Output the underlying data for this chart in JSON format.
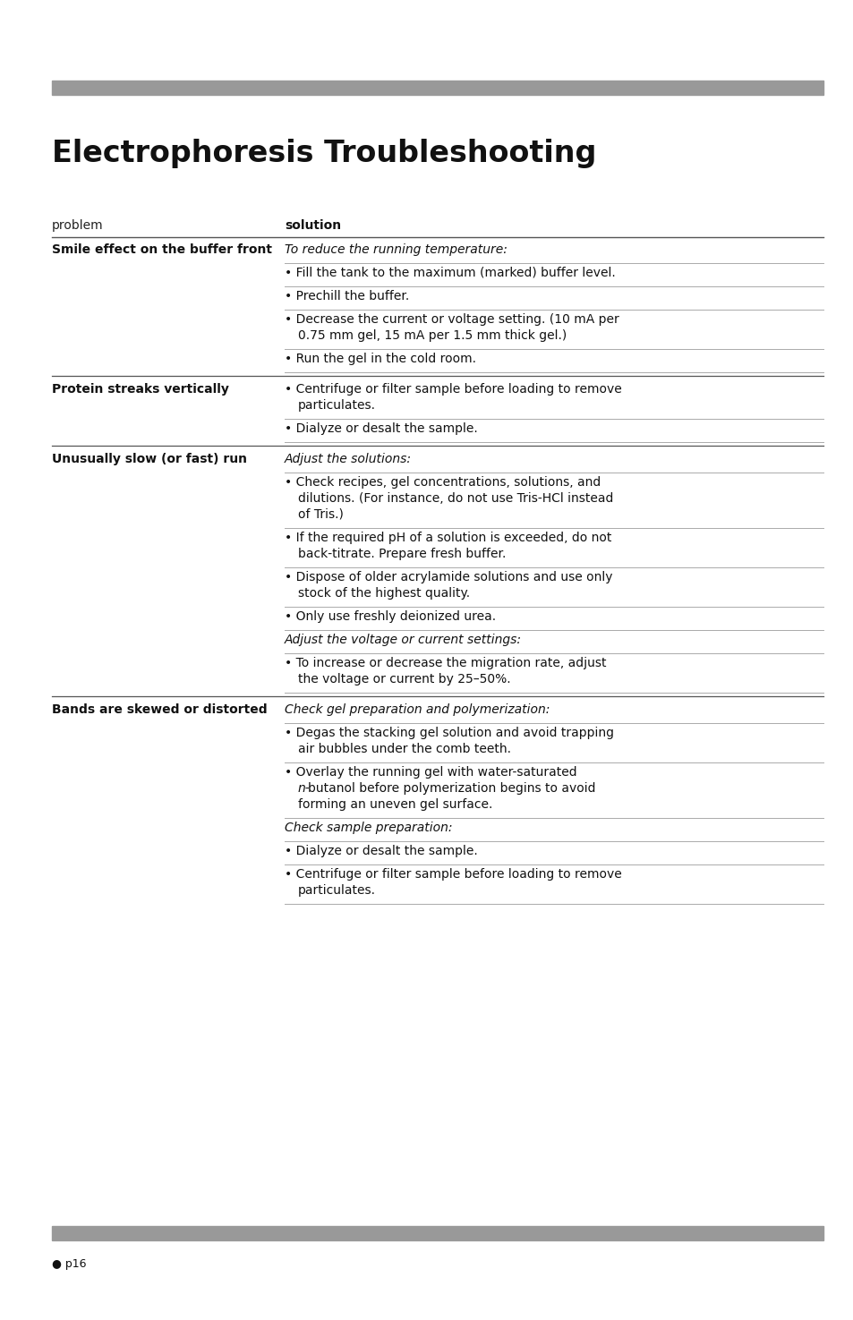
{
  "title": "Electrophoresis Troubleshooting",
  "bg_color": "#ffffff",
  "header_bar_color": "#999999",
  "col_header_problem": "problem",
  "col_header_solution": "solution",
  "footer_text": "● p16",
  "rows": [
    {
      "problem": "Smile effect on the buffer front",
      "solutions": [
        {
          "text": "To reduce the running temperature:",
          "italic": true,
          "bullet": false
        },
        {
          "text": "Fill the tank to the maximum (marked) buffer level.",
          "italic": false,
          "bullet": true
        },
        {
          "text": "Prechill the buffer.",
          "italic": false,
          "bullet": true
        },
        {
          "text": "Decrease the current or voltage setting. (10 mA per\n0.75 mm gel, 15 mA per 1.5 mm thick gel.)",
          "italic": false,
          "bullet": true
        },
        {
          "text": "Run the gel in the cold room.",
          "italic": false,
          "bullet": true
        }
      ]
    },
    {
      "problem": "Protein streaks vertically",
      "solutions": [
        {
          "text": "Centrifuge or filter sample before loading to remove\nparticulates.",
          "italic": false,
          "bullet": true
        },
        {
          "text": "Dialyze or desalt the sample.",
          "italic": false,
          "bullet": true
        }
      ]
    },
    {
      "problem": "Unusually slow (or fast) run",
      "solutions": [
        {
          "text": "Adjust the solutions:",
          "italic": true,
          "bullet": false
        },
        {
          "text": "Check recipes, gel concentrations, solutions, and\ndilutions. (For instance, do not use Tris-HCl instead\nof Tris.)",
          "italic": false,
          "bullet": true
        },
        {
          "text": "If the required pH of a solution is exceeded, do not\nback-titrate. Prepare fresh buffer.",
          "italic": false,
          "bullet": true
        },
        {
          "text": "Dispose of older acrylamide solutions and use only\nstock of the highest quality.",
          "italic": false,
          "bullet": true
        },
        {
          "text": "Only use freshly deionized urea.",
          "italic": false,
          "bullet": true
        },
        {
          "text": "Adjust the voltage or current settings:",
          "italic": true,
          "bullet": false
        },
        {
          "text": "To increase or decrease the migration rate, adjust\nthe voltage or current by 25–50%.",
          "italic": false,
          "bullet": true
        }
      ]
    },
    {
      "problem": "Bands are skewed or distorted",
      "solutions": [
        {
          "text": "Check gel preparation and polymerization:",
          "italic": true,
          "bullet": false
        },
        {
          "text": "Degas the stacking gel solution and avoid trapping\nair bubbles under the comb teeth.",
          "italic": false,
          "bullet": true
        },
        {
          "text": "Overlay the running gel with water-saturated\nn-butanol before polymerization begins to avoid\nforming an uneven gel surface.",
          "italic": false,
          "bullet": true,
          "n_italic": true
        },
        {
          "text": "Check sample preparation:",
          "italic": true,
          "bullet": false
        },
        {
          "text": "Dialyze or desalt the sample.",
          "italic": false,
          "bullet": true
        },
        {
          "text": "Centrifuge or filter sample before loading to remove\nparticulates.",
          "italic": false,
          "bullet": true
        }
      ]
    }
  ]
}
